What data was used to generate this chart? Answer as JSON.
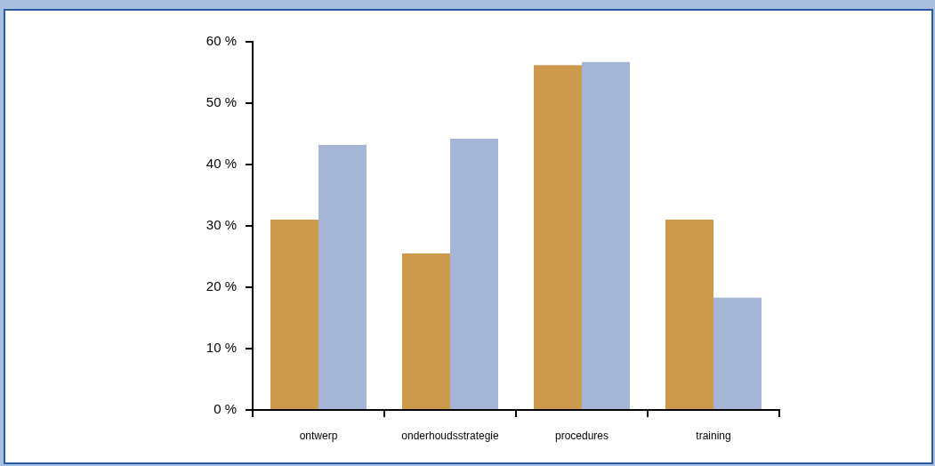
{
  "chart_data": {
    "type": "bar",
    "categories": [
      "ontwerp",
      "onderhoudsstrategie",
      "procedures",
      "training"
    ],
    "series": [
      {
        "color": "#cd994d",
        "values": [
          31,
          25.5,
          56.2,
          31
        ]
      },
      {
        "color": "#a4b5d6",
        "values": [
          43.2,
          44.2,
          56.7,
          18.3
        ]
      }
    ],
    "ylim": [
      0,
      60
    ],
    "yticks": [
      {
        "value": 0,
        "label": "0 %"
      },
      {
        "value": 10,
        "label": "10 %"
      },
      {
        "value": 20,
        "label": "20 %"
      },
      {
        "value": 30,
        "label": "30 %"
      },
      {
        "value": 40,
        "label": "40 %"
      },
      {
        "value": 50,
        "label": "50 %"
      },
      {
        "value": 60,
        "label": "60 %"
      }
    ],
    "grid": false,
    "legend": false
  }
}
